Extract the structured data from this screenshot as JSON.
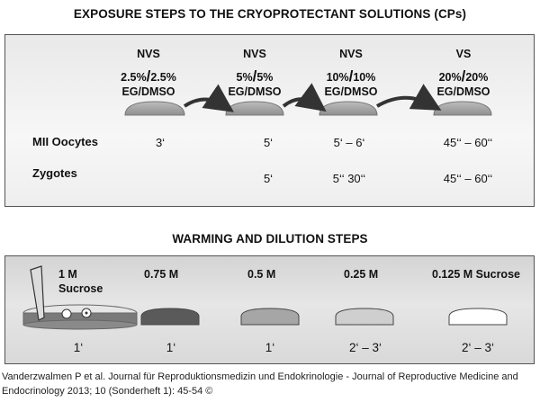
{
  "exposure": {
    "title": "EXPOSURE STEPS TO THE CRYOPROTECTANT SOLUTIONS (CPs)",
    "steps": [
      {
        "type": "NVS",
        "c1": "2.5%",
        "c2": "2.5%",
        "medium": "EG/DMSO"
      },
      {
        "type": "NVS",
        "c1": "5%",
        "c2": "5%",
        "medium": "EG/DMSO"
      },
      {
        "type": "NVS",
        "c1": "10%",
        "c2": "10%",
        "medium": "EG/DMSO"
      },
      {
        "type": "VS",
        "c1": "20%",
        "c2": "20%",
        "medium": "EG/DMSO"
      }
    ],
    "rows": [
      {
        "label": "MII Oocytes",
        "times": [
          "3‘",
          "5‘",
          "5‘ – 6‘",
          "45‘‘ – 60‘‘"
        ]
      },
      {
        "label": "Zygotes",
        "times": [
          "",
          "5‘",
          "5‘‘ 30‘‘",
          "45‘‘ – 60‘‘"
        ]
      }
    ]
  },
  "warming": {
    "title": "WARMING AND DILUTION STEPS",
    "steps": [
      {
        "label": "1 M",
        "label2": "Sucrose",
        "time": "1‘"
      },
      {
        "label": "0.75 M",
        "label2": "",
        "time": "1‘"
      },
      {
        "label": "0.5 M",
        "label2": "",
        "time": "1‘"
      },
      {
        "label": "0.25 M",
        "label2": "",
        "time": "2‘ – 3‘"
      },
      {
        "label": "0.125 M  Sucrose",
        "label2": "",
        "time": "2‘ – 3‘"
      }
    ],
    "dish_colors": [
      "#7a7a7a",
      "#5a5a5a",
      "#a6a6a6",
      "#cfcfcf",
      "#ffffff"
    ]
  },
  "footer": "Vanderzwalmen P et al. Journal für Reproduktionsmedizin und Endokrinologie - Journal of Reproductive Medicine and Endocrinology 2013; 10 (Sonderheft 1): 45-54 ©"
}
